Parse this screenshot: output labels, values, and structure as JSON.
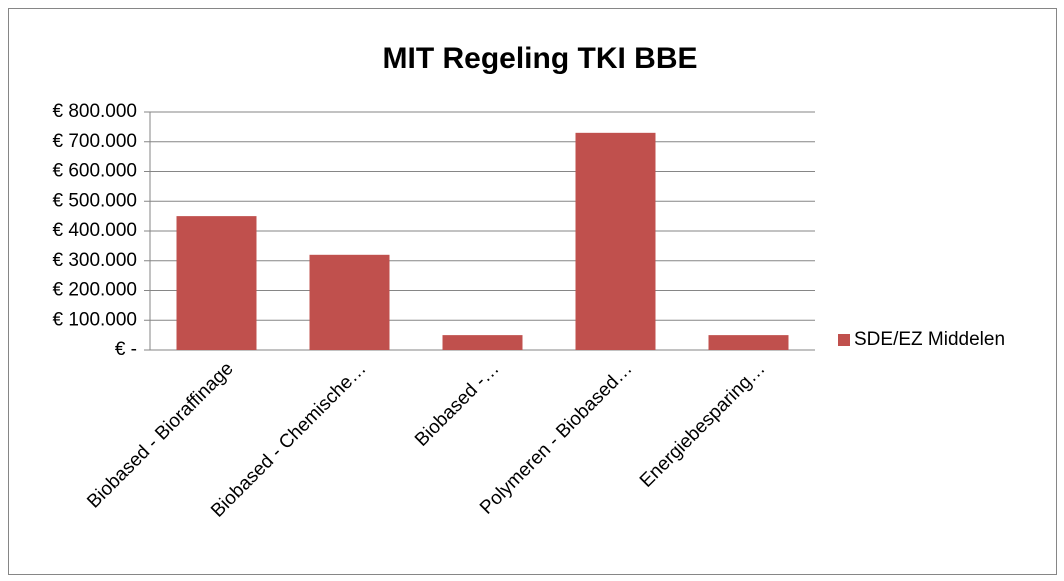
{
  "chart_data": {
    "type": "bar",
    "title": "MIT Regeling TKI BBE",
    "categories": [
      "Biobased - Bioraffinage",
      "Biobased - Chemische…",
      "Biobased -…",
      "Polymeren - Biobased…",
      "Energiebesparing…"
    ],
    "series": [
      {
        "name": "SDE/EZ Middelen",
        "color": "#c0504d",
        "values": [
          450000,
          320000,
          50000,
          730000,
          50000
        ]
      }
    ],
    "ylim": [
      0,
      800000
    ],
    "yticks": [
      {
        "value": 0,
        "label": "€ -"
      },
      {
        "value": 100000,
        "label": "€ 100.000"
      },
      {
        "value": 200000,
        "label": "€ 200.000"
      },
      {
        "value": 300000,
        "label": "€ 300.000"
      },
      {
        "value": 400000,
        "label": "€ 400.000"
      },
      {
        "value": 500000,
        "label": "€ 500.000"
      },
      {
        "value": 600000,
        "label": "€ 600.000"
      },
      {
        "value": 700000,
        "label": "€ 700.000"
      },
      {
        "value": 800000,
        "label": "€ 800.000"
      }
    ],
    "grid": true,
    "legend": "right"
  }
}
